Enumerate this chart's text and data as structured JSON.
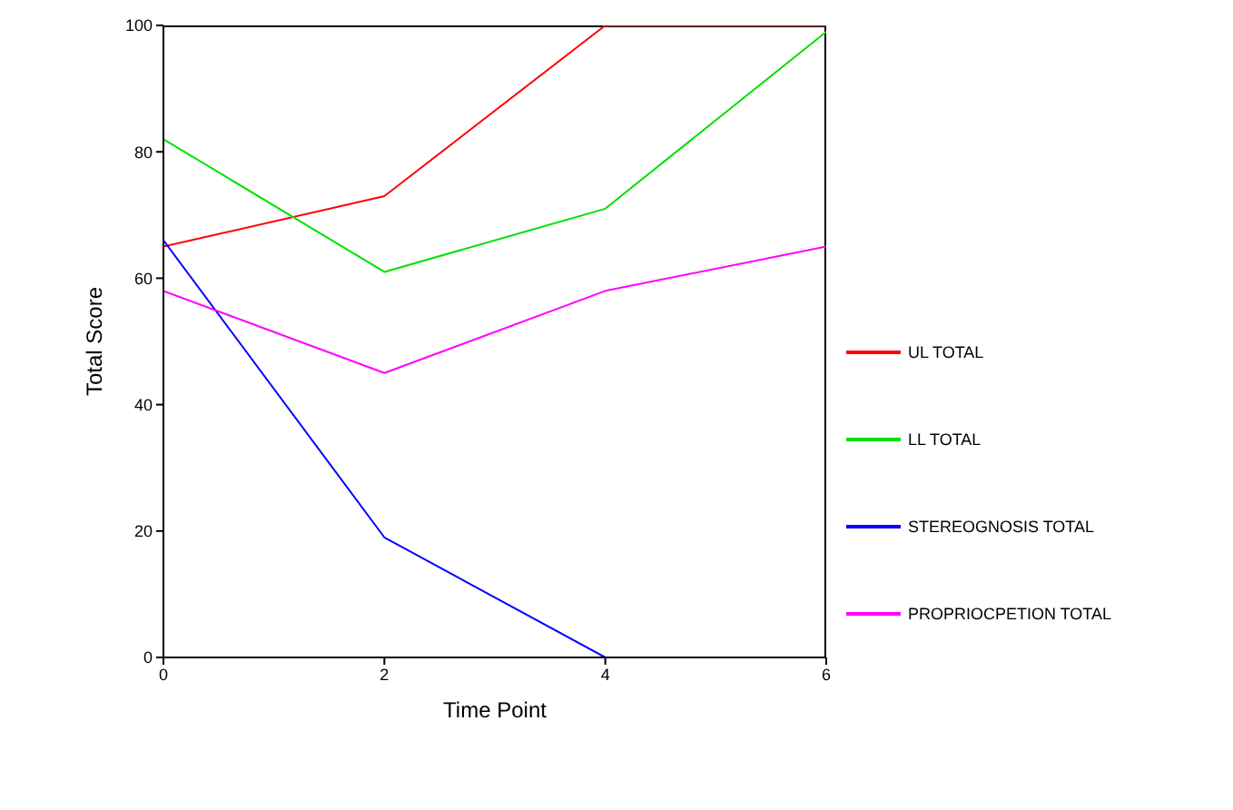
{
  "chart_data": {
    "type": "line",
    "xlabel": "Time Point",
    "ylabel": "Total Score",
    "x": [
      0,
      2,
      4,
      6
    ],
    "xlim": [
      0,
      6
    ],
    "xticks": [
      0,
      2,
      4,
      6
    ],
    "ylim": [
      0,
      100
    ],
    "yticks": [
      0,
      20,
      40,
      60,
      80,
      100
    ],
    "grid": false,
    "legend": "right",
    "marker": "none",
    "line_style": "solid",
    "series": [
      {
        "name": "UL TOTAL",
        "color": "#ff0000",
        "values": [
          65,
          73,
          100,
          100
        ]
      },
      {
        "name": "LL TOTAL",
        "color": "#00e000",
        "values": [
          82,
          61,
          71,
          99
        ]
      },
      {
        "name": "STEREOGNOSIS TOTAL",
        "color": "#0000ff",
        "values": [
          66,
          19,
          0,
          null
        ]
      },
      {
        "name": "PROPRIOCPETION TOTAL",
        "color": "#ff00ff",
        "values": [
          58,
          45,
          58,
          65
        ]
      }
    ]
  }
}
